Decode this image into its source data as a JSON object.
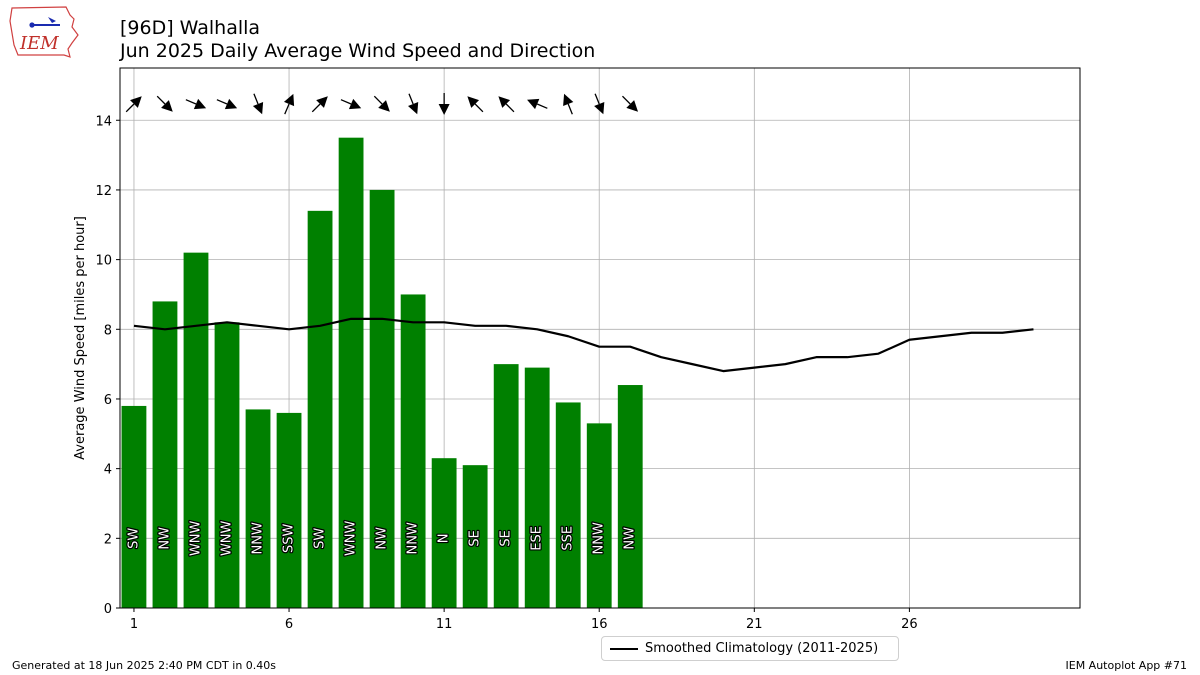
{
  "title": {
    "line1": "[96D] Walhalla",
    "line2": "Jun 2025 Daily Average Wind Speed and Direction"
  },
  "logo_text": "IEM",
  "footer": {
    "left": "Generated at 18 Jun 2025 2:40 PM CDT in 0.40s",
    "right": "IEM Autoplot App #71"
  },
  "legend": {
    "label": "Smoothed Climatology (2011-2025)"
  },
  "colors": {
    "bar": "#008000",
    "line": "#000000",
    "grid": "#b0b0b0"
  },
  "chart_data": {
    "type": "bar",
    "ylabel": "Average Wind Speed [miles per hour]",
    "xlim": [
      0.55,
      31.5
    ],
    "ylim": [
      0,
      15.5
    ],
    "xticks": [
      1,
      6,
      11,
      16,
      21,
      26
    ],
    "yticks": [
      0,
      2,
      4,
      6,
      8,
      10,
      12,
      14
    ],
    "grid": true,
    "legend_position": "bottom-center",
    "series": [
      {
        "name": "Daily Average Wind Speed",
        "days": [
          1,
          2,
          3,
          4,
          5,
          6,
          7,
          8,
          9,
          10,
          11,
          12,
          13,
          14,
          15,
          16,
          17
        ],
        "values": [
          5.8,
          8.8,
          10.2,
          8.2,
          5.7,
          5.6,
          11.4,
          13.5,
          12.0,
          9.0,
          4.3,
          4.1,
          7.0,
          6.9,
          5.9,
          5.3,
          6.4
        ],
        "direction_labels": [
          "SW",
          "NW",
          "WNW",
          "WNW",
          "NNW",
          "SSW",
          "SW",
          "WNW",
          "NW",
          "NNW",
          "N",
          "SE",
          "SE",
          "ESE",
          "SSE",
          "NNW",
          "NW"
        ],
        "direction_degrees": [
          225,
          315,
          293,
          293,
          338,
          203,
          225,
          293,
          315,
          338,
          0,
          135,
          135,
          113,
          158,
          338,
          315
        ]
      },
      {
        "name": "Smoothed Climatology (2011-2025)",
        "days": [
          1,
          2,
          3,
          4,
          5,
          6,
          7,
          8,
          9,
          10,
          11,
          12,
          13,
          14,
          15,
          16,
          17,
          18,
          19,
          20,
          21,
          22,
          23,
          24,
          25,
          26,
          27,
          28,
          29,
          30
        ],
        "values": [
          8.1,
          8.0,
          8.1,
          8.2,
          8.1,
          8.0,
          8.1,
          8.3,
          8.3,
          8.2,
          8.2,
          8.1,
          8.1,
          8.0,
          7.8,
          7.5,
          7.5,
          7.2,
          7.0,
          6.8,
          6.9,
          7.0,
          7.2,
          7.2,
          7.3,
          7.7,
          7.8,
          7.9,
          7.9,
          8.0
        ]
      }
    ]
  }
}
